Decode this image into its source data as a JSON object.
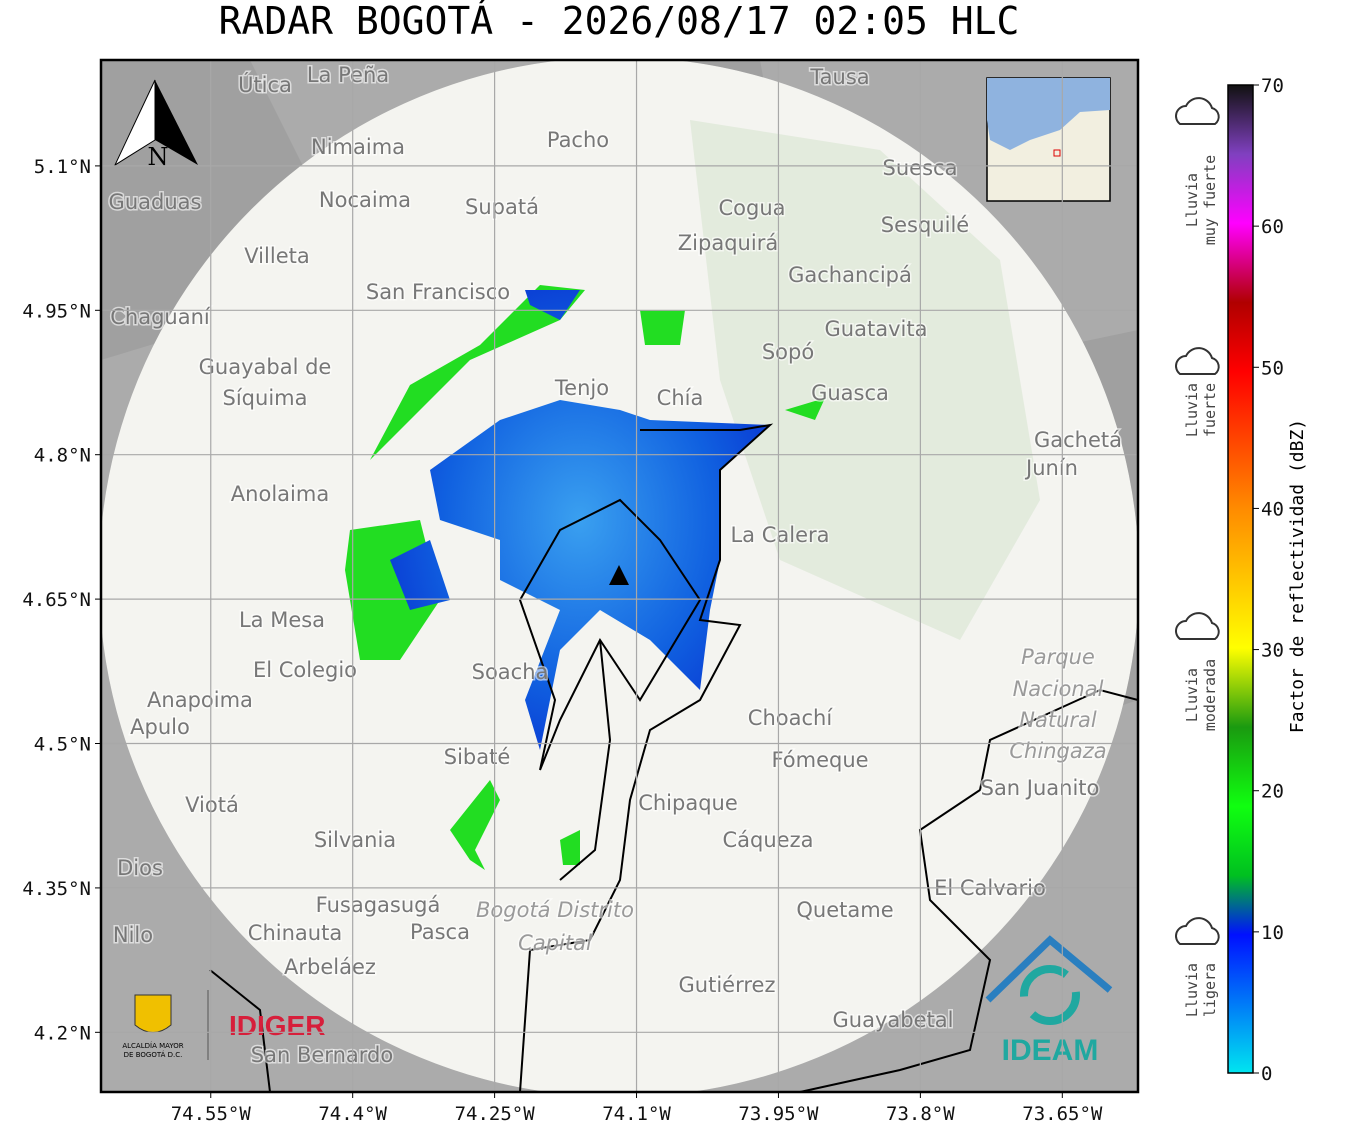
{
  "map": {
    "title": "RADAR BOGOTÁ - 2026/08/17 02:05 HLC",
    "lon_lim": [
      -74.666,
      -73.57
    ],
    "lat_lim": [
      4.138,
      5.21
    ],
    "lon_ticks": [
      {
        "value": -74.55,
        "label": "74.55°W"
      },
      {
        "value": -74.4,
        "label": "74.4°W"
      },
      {
        "value": -74.25,
        "label": "74.25°W"
      },
      {
        "value": -74.1,
        "label": "74.1°W"
      },
      {
        "value": -73.95,
        "label": "73.95°W"
      },
      {
        "value": -73.8,
        "label": "73.8°W"
      },
      {
        "value": -73.65,
        "label": "73.65°W"
      }
    ],
    "lat_ticks": [
      {
        "value": 5.1,
        "label": "5.1°N"
      },
      {
        "value": 4.95,
        "label": "4.95°N"
      },
      {
        "value": 4.8,
        "label": "4.8°N"
      },
      {
        "value": 4.65,
        "label": "4.65°N"
      },
      {
        "value": 4.5,
        "label": "4.5°N"
      },
      {
        "value": 4.35,
        "label": "4.35°N"
      },
      {
        "value": 4.2,
        "label": "4.2°N"
      }
    ],
    "north": "N",
    "places": [
      "La Peña",
      "Útica",
      "Tausa",
      "Pacho",
      "Nimaima",
      "Nocaima",
      "Supatá",
      "Guaduas",
      "Cogua",
      "Suesca",
      "Zipaquirá",
      "Sesquilé",
      "Villeta",
      "Gachancipá",
      "San Francisco",
      "Chaguaní",
      "Guatavita",
      "Guayabal de",
      "Síquima",
      "Sopó",
      "Tenjo",
      "Chía",
      "Guasca",
      "Gachetá",
      "Junín",
      "Anolaima",
      "La Calera",
      "La Mesa",
      "El Colegio",
      "Anapoima",
      "Apulo",
      "Soacha",
      "Choachí",
      "Sibaté",
      "Fómeque",
      "San Juanito",
      "Viotá",
      "Chipaque",
      "Silvania",
      "Cáqueza",
      "El Calvario",
      "Fusagasugá",
      "Quetame",
      "Chinauta",
      "Pasca",
      "Nilo",
      "Arbeláez",
      "Gutiérrez",
      "Guayabetal",
      "San Bernardo",
      "Dios"
    ],
    "italic_places": [
      "Parque",
      "Nacional",
      "Natural",
      "Chingaza",
      "Bogotá Distrito",
      "Capital"
    ],
    "logos": {
      "idiger": "IDIGER",
      "ideam": "IDEAM",
      "alcaldia": [
        "ALCALDÍA MAYOR",
        "DE BOGOTÁ D.C."
      ]
    }
  },
  "colorbar": {
    "label": "Factor de reflectividad (dBZ)",
    "lim": [
      0,
      70
    ],
    "ticks": [
      0,
      10,
      20,
      30,
      40,
      50,
      60,
      70
    ]
  },
  "legend": [
    {
      "lines": [
        "Lluvia",
        "muy fuerte"
      ]
    },
    {
      "lines": [
        "Lluvia",
        "fuerte"
      ]
    },
    {
      "lines": [
        "Lluvia",
        "moderada"
      ]
    },
    {
      "lines": [
        "Lluvia",
        "ligera"
      ]
    }
  ]
}
